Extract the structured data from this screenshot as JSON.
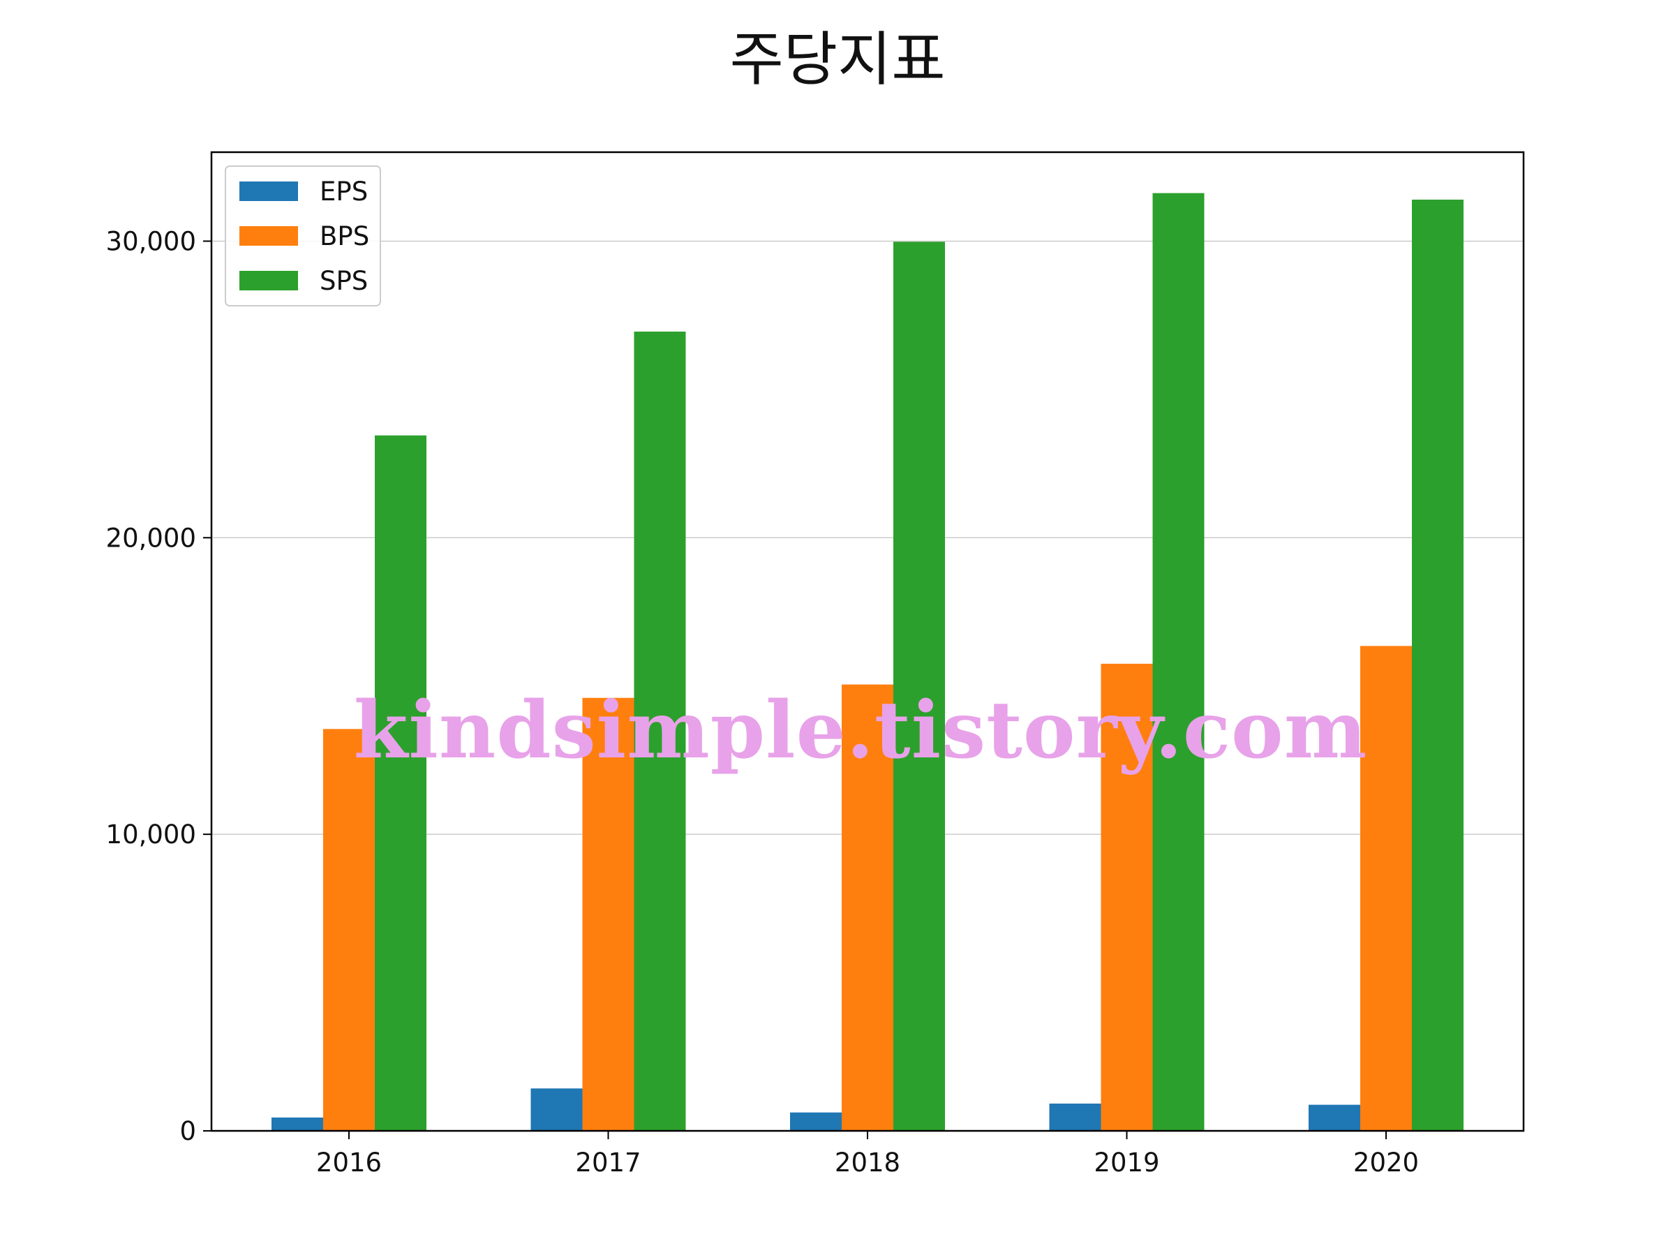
{
  "chart_data": {
    "type": "bar",
    "title": "주당지표",
    "xlabel": "",
    "ylabel": "",
    "categories": [
      "2016",
      "2017",
      "2018",
      "2019",
      "2020"
    ],
    "series": [
      {
        "name": "EPS",
        "color": "#1f77b4",
        "values": [
          450,
          1430,
          620,
          920,
          880
        ]
      },
      {
        "name": "BPS",
        "color": "#ff7f0e",
        "values": [
          13550,
          14600,
          15050,
          15750,
          16350
        ]
      },
      {
        "name": "SPS",
        "color": "#2ca02c",
        "values": [
          23450,
          26950,
          29980,
          31620,
          31400
        ]
      }
    ],
    "ylim": [
      0,
      33000
    ],
    "yticks": [
      0,
      10000,
      20000,
      30000
    ],
    "ytick_labels": [
      "0",
      "10,000",
      "20,000",
      "30,000"
    ],
    "grid": "horizontal",
    "legend": "upper-left"
  },
  "watermark": "kindsimple.tistory.com"
}
